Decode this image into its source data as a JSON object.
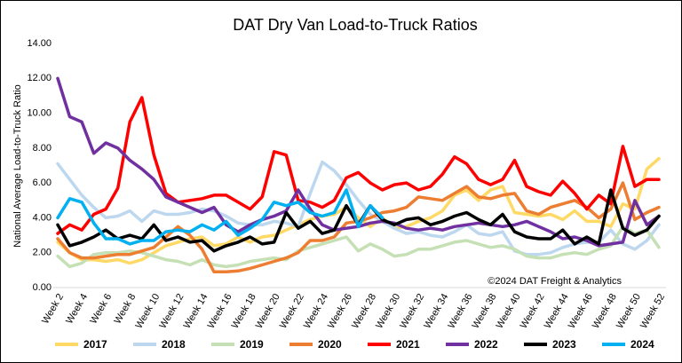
{
  "chart_data": {
    "type": "line",
    "title": "DAT Dry Van Load-to-Truck Ratios",
    "y_label": "National Average Load-to-Truck Ratio",
    "annotation": "©2024 DAT Freight & Analytics",
    "categories": [
      "Week 2",
      null,
      "Week 4",
      null,
      "Week 6",
      null,
      "Week 8",
      null,
      "Week 10",
      null,
      "Week 12",
      null,
      "Week 14",
      null,
      "Week 16",
      null,
      "Week 18",
      null,
      "Week 20",
      null,
      "Week 22",
      null,
      "Week 24",
      null,
      "Week 26",
      null,
      "Week 28",
      null,
      "Week 30",
      null,
      "Week 32",
      null,
      "Week 34",
      null,
      "Week 36",
      null,
      "Week 38",
      null,
      "Week 40",
      null,
      "Week 42",
      null,
      "Week 44",
      null,
      "Week 46",
      null,
      "Week 48",
      null,
      "Week 50",
      null,
      "Week 52"
    ],
    "ylim": [
      0,
      14
    ],
    "yticks": [
      {
        "value": 0,
        "label": "0.00"
      },
      {
        "value": 2,
        "label": "2.00"
      },
      {
        "value": 4,
        "label": "4.00"
      },
      {
        "value": 6,
        "label": "6.00"
      },
      {
        "value": 8,
        "label": "8.00"
      },
      {
        "value": 10,
        "label": "10.00"
      },
      {
        "value": 12,
        "label": "12.00"
      },
      {
        "value": 14,
        "label": "14.00"
      }
    ],
    "grid": false,
    "legend": "bottom",
    "series": [
      {
        "name": "2017",
        "color": "#ffd966",
        "values": [
          2.6,
          2.0,
          1.6,
          1.6,
          1.5,
          1.6,
          1.4,
          1.6,
          2.0,
          2.4,
          2.6,
          2.8,
          2.9,
          2.4,
          2.5,
          2.9,
          2.6,
          2.9,
          3.0,
          3.3,
          3.6,
          3.9,
          4.1,
          4.2,
          4.6,
          4.0,
          3.5,
          4.0,
          3.4,
          3.5,
          3.8,
          4.0,
          4.4,
          5.3,
          5.6,
          5.0,
          5.6,
          5.8,
          4.3,
          4.2,
          4.1,
          4.2,
          3.9,
          4.4,
          3.8,
          3.8,
          3.5,
          4.8,
          4.5,
          6.8,
          7.4
        ]
      },
      {
        "name": "2018",
        "color": "#bdd7ee",
        "values": [
          7.1,
          6.2,
          5.3,
          4.6,
          4.0,
          4.1,
          4.4,
          3.8,
          4.4,
          4.2,
          4.2,
          4.3,
          4.5,
          4.4,
          4.1,
          3.7,
          3.6,
          3.6,
          3.8,
          3.7,
          3.5,
          5.4,
          7.2,
          6.7,
          5.9,
          5.0,
          4.2,
          3.8,
          3.4,
          3.1,
          3.2,
          3.0,
          2.9,
          3.2,
          3.6,
          3.1,
          3.0,
          3.2,
          2.1,
          1.9,
          1.9,
          2.0,
          2.3,
          2.5,
          2.6,
          2.6,
          3.3,
          2.5,
          2.2,
          2.7,
          3.6
        ]
      },
      {
        "name": "2019",
        "color": "#c5e0b4",
        "values": [
          1.8,
          1.2,
          1.4,
          1.9,
          2.0,
          2.0,
          2.1,
          2.0,
          1.8,
          1.6,
          1.5,
          1.3,
          1.6,
          1.3,
          1.2,
          1.3,
          1.5,
          1.6,
          1.7,
          1.6,
          2.1,
          2.3,
          2.5,
          2.7,
          2.9,
          2.1,
          2.5,
          2.2,
          1.8,
          1.9,
          2.2,
          2.2,
          2.4,
          2.6,
          2.7,
          2.5,
          2.3,
          2.4,
          2.2,
          1.8,
          1.7,
          1.7,
          1.9,
          2.0,
          1.9,
          2.2,
          2.4,
          3.5,
          3.1,
          3.3,
          2.3
        ]
      },
      {
        "name": "2020",
        "color": "#ed7d31",
        "values": [
          2.8,
          2.0,
          1.7,
          1.7,
          1.8,
          1.9,
          1.9,
          2.1,
          2.3,
          2.9,
          3.5,
          3.0,
          2.2,
          0.9,
          0.9,
          0.95,
          1.1,
          1.3,
          1.5,
          1.7,
          2.0,
          2.7,
          2.7,
          2.9,
          3.7,
          3.8,
          4.0,
          4.3,
          4.4,
          4.6,
          5.2,
          5.1,
          5.0,
          5.4,
          5.8,
          5.2,
          5.1,
          5.3,
          5.4,
          4.4,
          4.2,
          4.6,
          4.8,
          5.0,
          4.6,
          4.0,
          4.5,
          6.0,
          3.9,
          4.3,
          4.6
        ]
      },
      {
        "name": "2021",
        "color": "#ff0000",
        "values": [
          3.1,
          3.6,
          3.3,
          4.2,
          4.5,
          5.7,
          9.5,
          10.9,
          7.6,
          5.4,
          4.9,
          5.0,
          5.1,
          5.3,
          5.3,
          4.9,
          4.5,
          5.2,
          7.8,
          7.6,
          5.0,
          4.9,
          4.6,
          5.0,
          6.3,
          6.6,
          6.0,
          5.6,
          5.9,
          6.0,
          5.6,
          5.8,
          6.5,
          7.5,
          7.1,
          6.2,
          5.9,
          6.2,
          7.3,
          5.8,
          5.5,
          5.3,
          6.1,
          5.4,
          4.5,
          5.3,
          4.8,
          8.1,
          5.8,
          6.2,
          6.2
        ]
      },
      {
        "name": "2022",
        "color": "#7030a0",
        "values": [
          12.0,
          9.8,
          9.5,
          7.7,
          8.3,
          8.0,
          7.3,
          6.8,
          6.2,
          5.2,
          4.9,
          4.6,
          4.3,
          4.6,
          3.6,
          3.2,
          3.6,
          3.9,
          4.1,
          4.4,
          5.6,
          4.5,
          3.6,
          3.3,
          3.4,
          3.5,
          3.7,
          3.8,
          3.7,
          3.4,
          3.3,
          3.4,
          3.3,
          3.5,
          3.6,
          3.7,
          3.6,
          3.5,
          3.6,
          3.8,
          3.5,
          3.2,
          2.8,
          2.9,
          2.7,
          2.4,
          2.5,
          2.6,
          5.0,
          3.6,
          4.1
        ]
      },
      {
        "name": "2023",
        "color": "#000000",
        "values": [
          3.6,
          2.4,
          2.6,
          2.9,
          3.3,
          2.8,
          3.0,
          2.8,
          3.6,
          2.7,
          2.9,
          2.6,
          2.7,
          2.1,
          2.4,
          2.6,
          2.9,
          2.5,
          2.6,
          4.3,
          3.4,
          3.8,
          3.1,
          3.3,
          4.7,
          3.6,
          4.7,
          3.9,
          3.6,
          3.9,
          4.0,
          3.6,
          3.8,
          4.1,
          4.3,
          3.9,
          3.6,
          4.2,
          3.2,
          2.9,
          2.8,
          2.8,
          3.3,
          2.5,
          2.9,
          2.5,
          5.6,
          3.4,
          3.0,
          3.3,
          4.1
        ]
      },
      {
        "name": "2024",
        "color": "#00b0f0",
        "values": [
          4.0,
          5.1,
          4.9,
          3.7,
          2.8,
          2.8,
          2.5,
          2.7,
          2.7,
          3.2,
          3.3,
          3.2,
          3.6,
          3.3,
          3.8,
          3.0,
          3.4,
          3.9,
          4.9,
          4.7,
          4.9,
          4.3,
          4.1,
          4.3,
          5.6,
          3.5,
          4.7,
          4.0,
          null,
          null,
          null,
          null,
          null,
          null,
          null,
          null,
          null,
          null,
          null,
          null,
          null,
          null,
          null,
          null,
          null,
          null,
          null,
          null,
          null,
          null,
          null
        ]
      }
    ]
  }
}
